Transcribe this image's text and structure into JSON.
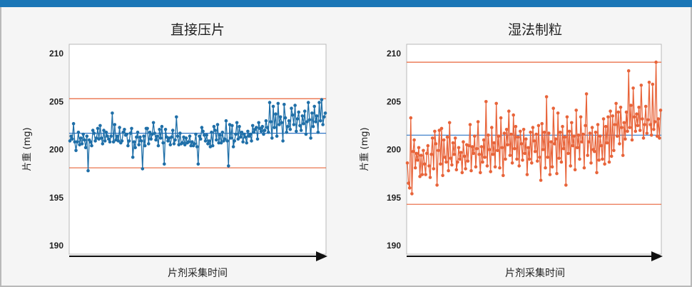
{
  "colors": {
    "banner": "#1a76b6",
    "limit_line": "#e8643a",
    "center_line": "#2f74c6"
  },
  "chart_data": [
    {
      "type": "line",
      "title": "直接压片",
      "xlabel": "片剂采集时间",
      "ylabel": "片重 (mg)",
      "ylim": [
        190,
        210
      ],
      "yticks": [
        210,
        205,
        200,
        195,
        190
      ],
      "grid": false,
      "color": "#1f6fa8",
      "ucl": 205.3,
      "lcl": 198.1,
      "center": 201.7,
      "values": [
        200.9,
        201.4,
        201.1,
        202.7,
        200.8,
        199.9,
        200.8,
        201.8,
        200.5,
        201.2,
        200.6,
        201.6,
        201.0,
        200.2,
        201.4,
        197.8,
        201.0,
        200.8,
        200.4,
        202.0,
        201.7,
        200.9,
        201.2,
        202.2,
        201.1,
        202.5,
        201.2,
        200.6,
        202.0,
        200.9,
        201.8,
        201.4,
        201.1,
        200.8,
        201.4,
        203.8,
        200.8,
        202.6,
        201.0,
        201.4,
        200.9,
        202.3,
        200.7,
        200.9,
        201.8,
        202.1,
        201.5,
        201.6,
        200.4,
        200.9,
        201.7,
        202.2,
        199.2,
        200.8,
        200.2,
        201.3,
        201.8,
        200.5,
        201.3,
        200.9,
        198.0,
        201.4,
        200.4,
        202.2,
        202.2,
        200.6,
        201.8,
        201.1,
        201.6,
        202.8,
        201.7,
        201.0,
        201.4,
        200.4,
        202.1,
        201.2,
        202.4,
        200.7,
        198.5,
        202.1,
        201.3,
        200.9,
        201.2,
        200.5,
        201.3,
        202.0,
        200.6,
        201.0,
        203.4,
        201.4,
        200.5,
        201.7,
        200.6,
        200.7,
        201.3,
        200.5,
        201.2,
        200.7,
        200.8,
        201.4,
        200.4,
        200.8,
        200.4,
        200.6,
        201.6,
        200.3,
        198.5,
        201.4,
        201.1,
        202.3,
        201.9,
        201.5,
        200.9,
        201.5,
        200.6,
        200.9,
        200.3,
        201.8,
        200.4,
        202.4,
        202.0,
        201.0,
        202.6,
        200.7,
        201.5,
        200.7,
        201.8,
        200.9,
        201.1,
        203.0,
        200.9,
        198.3,
        202.6,
        201.2,
        202.5,
        200.3,
        200.9,
        201.6,
        202.8,
        201.1,
        202.4,
        201.3,
        201.8,
        200.8,
        201.6,
        201.3,
        200.7,
        201.9,
        201.4,
        201.6,
        200.9,
        202.5,
        201.8,
        202.1,
        202.3,
        201.1,
        202.8,
        202.2,
        201.9,
        202.4,
        201.6,
        202.0,
        203.0,
        202.3,
        201.8,
        204.9,
        202.9,
        201.2,
        204.5,
        202.3,
        203.7,
        201.4,
        204.8,
        202.6,
        203.4,
        202.8,
        200.9,
        204.7,
        203.3,
        201.8,
        202.4,
        203.0,
        202.1,
        204.3,
        203.6,
        202.6,
        204.6,
        201.9,
        203.2,
        203.9,
        202.5,
        202.0,
        203.5,
        202.7,
        204.0,
        201.6,
        202.9,
        204.9,
        203.1,
        201.2,
        203.8,
        202.4,
        204.5,
        202.9,
        203.5,
        201.8,
        204.9,
        203.0,
        205.2,
        202.6,
        203.4,
        203.8
      ]
    },
    {
      "type": "line",
      "title": "湿法制粒",
      "xlabel": "片剂采集时间",
      "ylabel": "片重 (mg)",
      "ylim": [
        190,
        210
      ],
      "yticks": [
        210,
        205,
        200,
        195,
        190
      ],
      "grid": false,
      "color": "#e8643a",
      "ucl": 209.1,
      "lcl": 194.3,
      "center": 201.5,
      "values": [
        198.6,
        196.5,
        196.0,
        203.3,
        195.4,
        199.8,
        201.0,
        198.1,
        199.6,
        198.9,
        200.2,
        197.2,
        199.4,
        197.4,
        199.9,
        198.5,
        197.4,
        199.6,
        200.4,
        198.3,
        197.1,
        199.5,
        201.2,
        198.0,
        201.9,
        200.6,
        196.3,
        199.9,
        202.0,
        198.5,
        202.2,
        197.3,
        201.0,
        199.2,
        198.7,
        201.3,
        197.8,
        202.8,
        199.1,
        198.4,
        200.7,
        199.5,
        201.2,
        197.9,
        198.7,
        200.2,
        199.0,
        199.7,
        197.6,
        200.8,
        199.3,
        198.0,
        200.5,
        198.8,
        200.4,
        202.6,
        197.8,
        200.3,
        199.6,
        201.4,
        198.2,
        200.1,
        202.9,
        199.5,
        197.6,
        200.3,
        198.7,
        201.0,
        199.2,
        205.0,
        198.3,
        201.5,
        200.0,
        197.7,
        202.3,
        199.5,
        200.7,
        198.2,
        204.8,
        199.9,
        201.4,
        198.1,
        203.3,
        200.2,
        197.3,
        201.7,
        199.0,
        202.1,
        200.5,
        204.0,
        199.4,
        201.6,
        198.6,
        203.6,
        200.1,
        202.4,
        199.0,
        201.3,
        198.3,
        201.9,
        200.6,
        198.9,
        202.1,
        199.6,
        201.1,
        197.4,
        200.2,
        199.0,
        201.8,
        198.6,
        202.3,
        200.9,
        199.8,
        201.6,
        198.8,
        202.5,
        199.2,
        196.8,
        202.7,
        200.0,
        201.8,
        198.1,
        205.5,
        199.2,
        201.7,
        197.4,
        200.8,
        198.2,
        204.3,
        200.6,
        201.1,
        197.5,
        203.8,
        199.1,
        201.8,
        198.7,
        202.4,
        200.1,
        201.3,
        196.3,
        203.4,
        199.6,
        201.9,
        198.3,
        202.8,
        200.4,
        201.4,
        197.9,
        204.1,
        200.2,
        201.5,
        199.0,
        203.4,
        200.8,
        201.6,
        198.1,
        202.5,
        205.8,
        199.4,
        200.8,
        201.7,
        198.6,
        202.3,
        200.0,
        199.8,
        201.8,
        197.6,
        202.6,
        198.9,
        201.4,
        200.4,
        199.0,
        203.2,
        198.5,
        202.4,
        200.7,
        203.4,
        198.7,
        204.0,
        199.3,
        203.5,
        199.9,
        202.6,
        204.8,
        201.4,
        203.9,
        200.6,
        204.4,
        202.3,
        199.4,
        202.8,
        201.1,
        203.9,
        201.9,
        208.2,
        202.3,
        204.6,
        201.0,
        206.4,
        203.4,
        201.9,
        203.7,
        202.5,
        204.4,
        202.0,
        206.7,
        203.2,
        201.2,
        202.6,
        204.5,
        201.7,
        203.1,
        207.0,
        202.6,
        201.5,
        206.8,
        202.1,
        202.9,
        209.1,
        201.4,
        203.2,
        201.2,
        204.1
      ]
    }
  ]
}
